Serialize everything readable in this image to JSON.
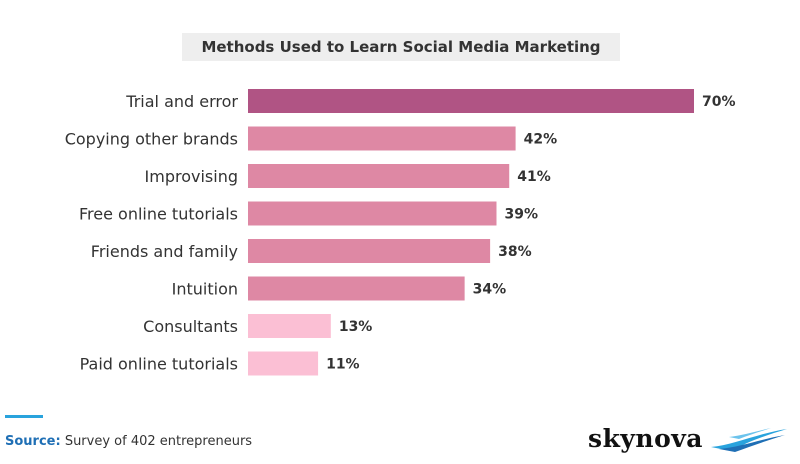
{
  "chart_data": {
    "type": "bar",
    "orientation": "horizontal",
    "title": "Methods Used to Learn Social Media Marketing",
    "categories": [
      "Trial and error",
      "Copying other brands",
      "Improvising",
      "Free online tutorials",
      "Friends and family",
      "Intuition",
      "Consultants",
      "Paid online tutorials"
    ],
    "values": [
      70,
      42,
      41,
      39,
      38,
      34,
      13,
      11
    ],
    "value_labels": [
      "70%",
      "42%",
      "41%",
      "39%",
      "38%",
      "34%",
      "13%",
      "11%"
    ],
    "bar_colors": [
      "#b05484",
      "#de88a4",
      "#de88a4",
      "#de88a4",
      "#de88a4",
      "#de88a4",
      "#fbbfd4",
      "#fbbfd4"
    ],
    "xlim": [
      0,
      70
    ],
    "grid": false,
    "legend": "none"
  },
  "footer": {
    "source_label": "Source:",
    "source_text": " Survey of 402 entrepreneurs"
  },
  "brand": {
    "name": "skynova",
    "logo_icon": "wave-swoosh-icon",
    "accent_color": "#29a3dd"
  }
}
